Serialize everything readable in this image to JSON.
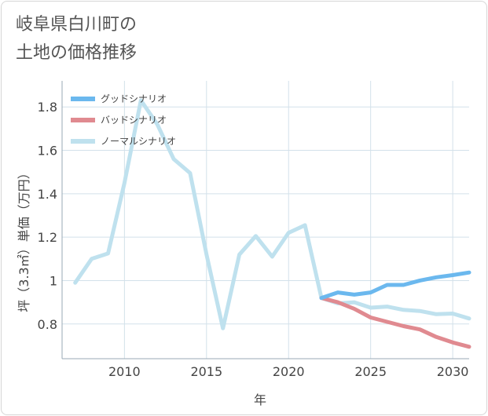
{
  "title_lines": [
    "岐阜県白川町の",
    "土地の価格推移"
  ],
  "chart_data": {
    "type": "line",
    "xlabel": "年",
    "ylabel": "坪（3.3㎡）単価（万円）",
    "xlim": [
      2006.2,
      2031
    ],
    "ylim": [
      0.64,
      1.92
    ],
    "x_ticks": [
      2010,
      2015,
      2020,
      2025,
      2030
    ],
    "y_ticks": [
      0.8,
      1,
      1.2,
      1.4,
      1.6,
      1.8
    ],
    "grid": true,
    "legend_position": "top-left",
    "series": [
      {
        "name": "グッドシナリオ",
        "color": "#6bb8ee",
        "x": [
          2022,
          2023,
          2024,
          2025,
          2026,
          2027,
          2028,
          2029,
          2030,
          2031
        ],
        "y": [
          0.92,
          0.945,
          0.935,
          0.945,
          0.98,
          0.98,
          1.0,
          1.015,
          1.025,
          1.037
        ]
      },
      {
        "name": "バッドシナリオ",
        "color": "#e08a90",
        "x": [
          2022,
          2023,
          2024,
          2025,
          2026,
          2027,
          2028,
          2029,
          2030,
          2031
        ],
        "y": [
          0.92,
          0.9,
          0.87,
          0.83,
          0.81,
          0.79,
          0.775,
          0.74,
          0.715,
          0.695
        ]
      },
      {
        "name": "ノーマルシナリオ",
        "color": "#bfe1ee",
        "x": [
          2007,
          2008,
          2009,
          2010,
          2011,
          2012,
          2013,
          2014,
          2015,
          2016,
          2017,
          2018,
          2019,
          2020,
          2021,
          2022,
          2023,
          2024,
          2025,
          2026,
          2027,
          2028,
          2029,
          2030,
          2031
        ],
        "y": [
          0.99,
          1.1,
          1.125,
          1.45,
          1.83,
          1.72,
          1.56,
          1.495,
          1.12,
          0.78,
          1.12,
          1.205,
          1.11,
          1.22,
          1.255,
          0.92,
          0.895,
          0.9,
          0.875,
          0.88,
          0.865,
          0.86,
          0.845,
          0.848,
          0.825
        ]
      }
    ]
  }
}
